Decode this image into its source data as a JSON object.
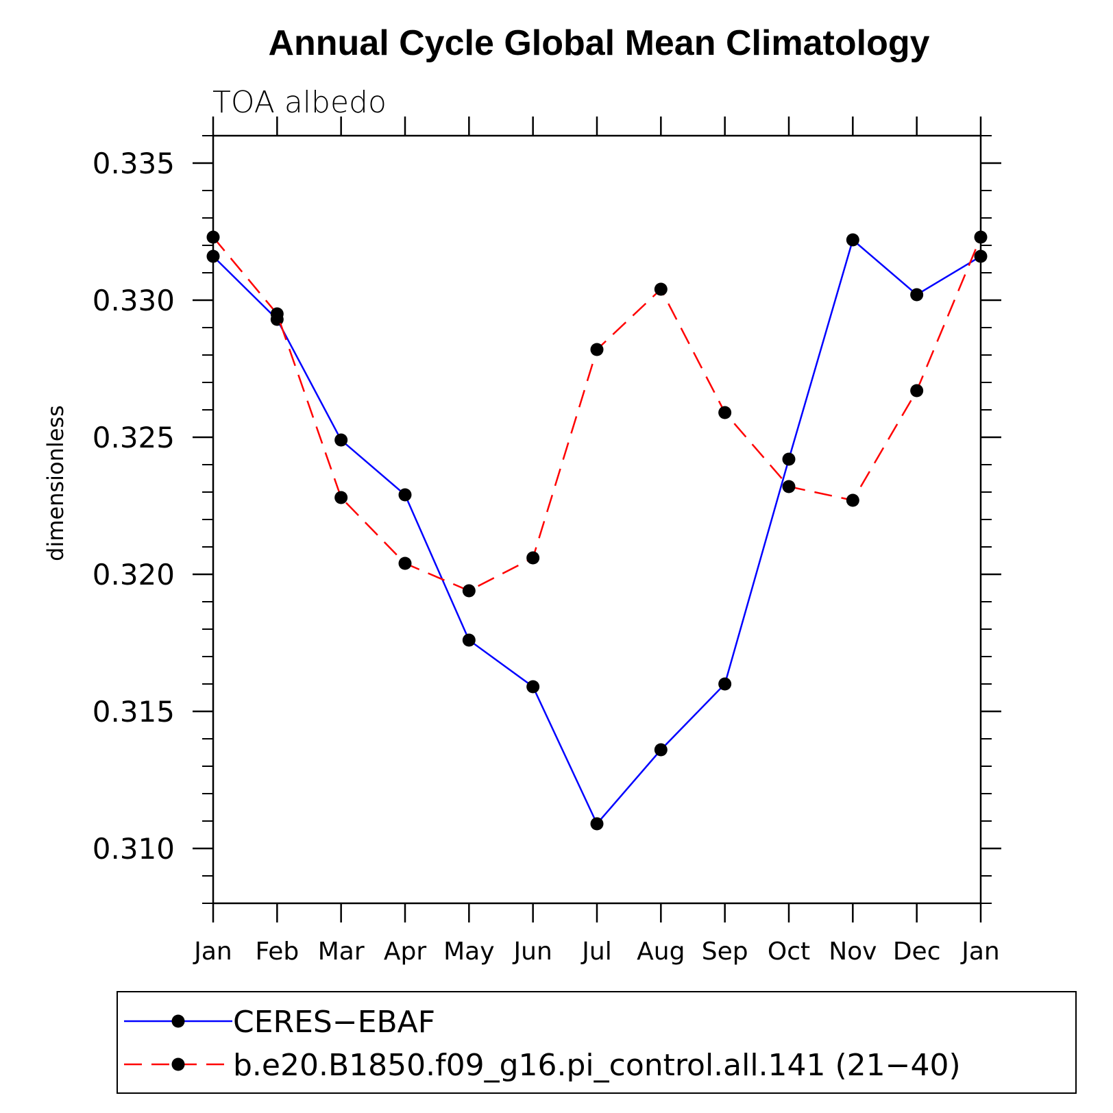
{
  "chart_data": {
    "type": "line",
    "title": "Annual Cycle Global Mean Climatology",
    "subtitle": "TOA albedo",
    "ylabel": "dimensionless",
    "xlabel": "",
    "categories": [
      "Jan",
      "Feb",
      "Mar",
      "Apr",
      "May",
      "Jun",
      "Jul",
      "Aug",
      "Sep",
      "Oct",
      "Nov",
      "Dec",
      "Jan"
    ],
    "ylim": [
      0.308,
      0.336
    ],
    "yticks": [
      0.31,
      0.315,
      0.32,
      0.325,
      0.33,
      0.335
    ],
    "ytick_labels": [
      "0.310",
      "0.315",
      "0.320",
      "0.325",
      "0.330",
      "0.335"
    ],
    "grid": false,
    "legend_position": "bottom",
    "series": [
      {
        "name": "CERES−EBAF",
        "color": "#0000ff",
        "dash": "solid",
        "marker": "circle",
        "values": [
          0.3316,
          0.3293,
          0.3249,
          0.3229,
          0.3176,
          0.3159,
          0.3109,
          0.3136,
          0.316,
          0.3242,
          0.3322,
          0.3302,
          0.3316
        ]
      },
      {
        "name": "b.e20.B1850.f09_g16.pi_control.all.141 (21−40)",
        "color": "#ff0000",
        "dash": "dashed",
        "marker": "circle",
        "values": [
          0.3323,
          0.3295,
          0.3228,
          0.3204,
          0.3194,
          0.3206,
          0.3282,
          0.3304,
          0.3259,
          0.3232,
          0.3227,
          0.3267,
          0.3323
        ]
      }
    ]
  }
}
